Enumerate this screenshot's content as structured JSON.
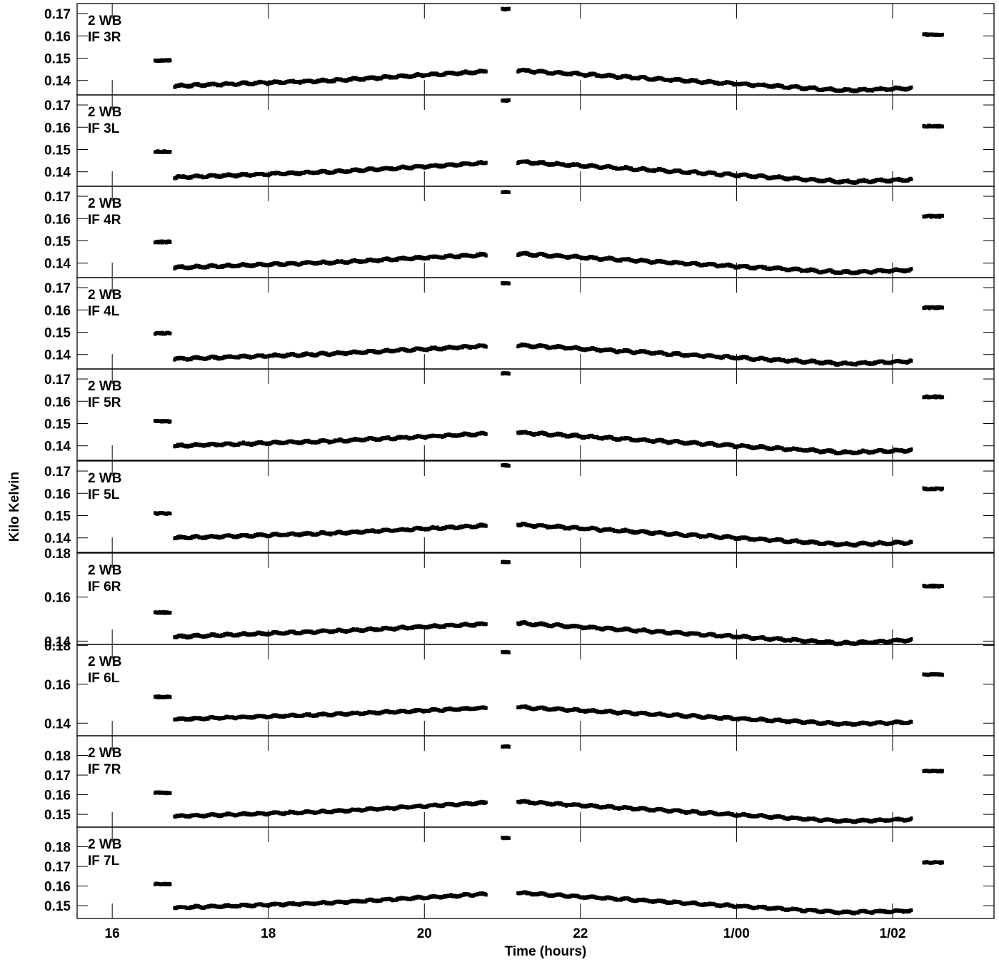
{
  "chart_data": {
    "type": "scatter",
    "xlabel": "Time (hours)",
    "ylabel": "Kilo Kelvin",
    "xlim": [
      15.55,
      27.3
    ],
    "x_ticks": [
      {
        "value": 16,
        "label": "16"
      },
      {
        "value": 18,
        "label": "18"
      },
      {
        "value": 20,
        "label": "20"
      },
      {
        "value": 22,
        "label": "22"
      },
      {
        "value": 24,
        "label": "1/00"
      },
      {
        "value": 26,
        "label": "1/02"
      }
    ],
    "grid": false,
    "panels": [
      {
        "label1": "2 WB",
        "label2": "IF 3R",
        "ylim": [
          0.1335,
          0.1745
        ],
        "yticks": [
          0.14,
          0.15,
          0.16,
          0.17
        ],
        "ytick_labels": [
          "0.14",
          "0.15",
          "0.16",
          "0.17"
        ],
        "early": 0.149,
        "start": 0.1375,
        "mid": 0.142,
        "end1": 0.144,
        "spike": 0.172,
        "start2": 0.1445,
        "low": 0.1355,
        "end2": 0.1365,
        "late": 0.1605
      },
      {
        "label1": "2 WB",
        "label2": "IF 3L",
        "ylim": [
          0.1335,
          0.1745
        ],
        "yticks": [
          0.14,
          0.15,
          0.16,
          0.17
        ],
        "ytick_labels": [
          "0.14",
          "0.15",
          "0.16",
          "0.17"
        ],
        "early": 0.149,
        "start": 0.1375,
        "mid": 0.142,
        "end1": 0.144,
        "spike": 0.172,
        "start2": 0.1445,
        "low": 0.1355,
        "end2": 0.1365,
        "late": 0.1605
      },
      {
        "label1": "2 WB",
        "label2": "IF 4R",
        "ylim": [
          0.1335,
          0.1745
        ],
        "yticks": [
          0.14,
          0.15,
          0.16,
          0.17
        ],
        "ytick_labels": [
          "0.14",
          "0.15",
          "0.16",
          "0.17"
        ],
        "early": 0.1495,
        "start": 0.138,
        "mid": 0.1422,
        "end1": 0.1438,
        "spike": 0.172,
        "start2": 0.1442,
        "low": 0.1358,
        "end2": 0.137,
        "late": 0.161
      },
      {
        "label1": "2 WB",
        "label2": "IF 4L",
        "ylim": [
          0.1335,
          0.1745
        ],
        "yticks": [
          0.14,
          0.15,
          0.16,
          0.17
        ],
        "ytick_labels": [
          "0.14",
          "0.15",
          "0.16",
          "0.17"
        ],
        "early": 0.1495,
        "start": 0.138,
        "mid": 0.1422,
        "end1": 0.1438,
        "spike": 0.172,
        "start2": 0.1442,
        "low": 0.1358,
        "end2": 0.137,
        "late": 0.161
      },
      {
        "label1": "2 WB",
        "label2": "IF 5R",
        "ylim": [
          0.1335,
          0.1745
        ],
        "yticks": [
          0.14,
          0.15,
          0.16,
          0.17
        ],
        "ytick_labels": [
          "0.14",
          "0.15",
          "0.16",
          "0.17"
        ],
        "early": 0.151,
        "start": 0.14,
        "mid": 0.1438,
        "end1": 0.1455,
        "spike": 0.1725,
        "start2": 0.146,
        "low": 0.137,
        "end2": 0.138,
        "late": 0.162
      },
      {
        "label1": "2 WB",
        "label2": "IF 5L",
        "ylim": [
          0.1335,
          0.1745
        ],
        "yticks": [
          0.14,
          0.15,
          0.16,
          0.17
        ],
        "ytick_labels": [
          "0.14",
          "0.15",
          "0.16",
          "0.17"
        ],
        "early": 0.151,
        "start": 0.14,
        "mid": 0.1438,
        "end1": 0.1455,
        "spike": 0.1725,
        "start2": 0.146,
        "low": 0.137,
        "end2": 0.138,
        "late": 0.162
      },
      {
        "label1": "2 WB",
        "label2": "IF 6R",
        "ylim": [
          0.1385,
          0.18
        ],
        "yticks": [
          0.14,
          0.16,
          0.18
        ],
        "ytick_labels": [
          "0.14",
          "0.16",
          "0.18"
        ],
        "early": 0.153,
        "start": 0.142,
        "mid": 0.1465,
        "end1": 0.1478,
        "spike": 0.176,
        "start2": 0.1482,
        "low": 0.139,
        "end2": 0.1405,
        "late": 0.165
      },
      {
        "label1": "2 WB",
        "label2": "IF 6L",
        "ylim": [
          0.1335,
          0.1805
        ],
        "yticks": [
          0.14,
          0.16,
          0.18
        ],
        "ytick_labels": [
          "0.14",
          "0.16",
          "0.18"
        ],
        "early": 0.1535,
        "start": 0.142,
        "mid": 0.1465,
        "end1": 0.1478,
        "spike": 0.1765,
        "start2": 0.1482,
        "low": 0.1395,
        "end2": 0.1405,
        "late": 0.165
      },
      {
        "label1": "2 WB",
        "label2": "IF 7R",
        "ylim": [
          0.1435,
          0.19
        ],
        "yticks": [
          0.15,
          0.16,
          0.17,
          0.18
        ],
        "ytick_labels": [
          "0.15",
          "0.16",
          "0.17",
          "0.18"
        ],
        "early": 0.161,
        "start": 0.149,
        "mid": 0.1535,
        "end1": 0.156,
        "spike": 0.1845,
        "start2": 0.1565,
        "low": 0.1465,
        "end2": 0.1475,
        "late": 0.172
      },
      {
        "label1": "2 WB",
        "label2": "IF 7L",
        "ylim": [
          0.1435,
          0.19
        ],
        "yticks": [
          0.15,
          0.16,
          0.17,
          0.18
        ],
        "ytick_labels": [
          "0.15",
          "0.16",
          "0.17",
          "0.18"
        ],
        "early": 0.161,
        "start": 0.149,
        "mid": 0.1535,
        "end1": 0.156,
        "spike": 0.1845,
        "start2": 0.1565,
        "low": 0.1465,
        "end2": 0.1475,
        "late": 0.172
      }
    ],
    "segments": {
      "early": [
        16.55,
        16.75
      ],
      "first": [
        16.8,
        20.8
      ],
      "spike": [
        21.0,
        21.03
      ],
      "second": [
        21.2,
        26.25
      ],
      "low_at": 25.4,
      "late": [
        26.4,
        26.65
      ]
    }
  }
}
